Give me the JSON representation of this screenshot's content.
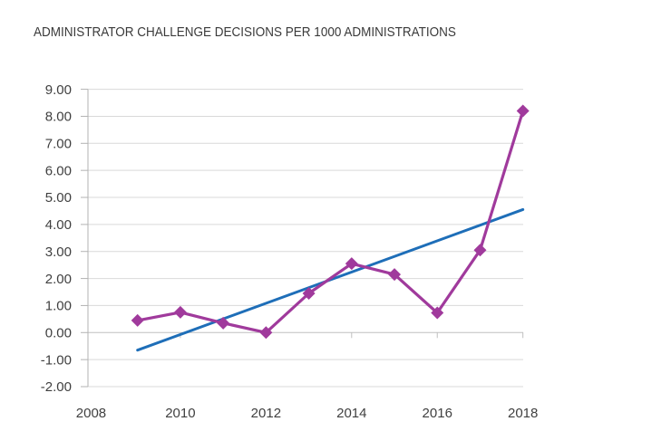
{
  "chart_data": {
    "type": "line",
    "title": "ADMINISTRATOR CHALLENGE DECISIONS PER 1000 ADMINISTRATIONS",
    "x": [
      2009,
      2010,
      2011,
      2012,
      2013,
      2014,
      2015,
      2016,
      2017,
      2018
    ],
    "series": [
      {
        "marker": "diamond",
        "color": "#a03a9c",
        "values": [
          0.45,
          0.75,
          0.35,
          0.0,
          1.45,
          2.55,
          2.15,
          0.73,
          3.05,
          8.2
        ]
      }
    ],
    "trendline": {
      "color": "#1e6eb8",
      "x1": 2009,
      "y1": -0.65,
      "x2": 2018,
      "y2": 4.55
    },
    "ylim": [
      -2,
      9
    ],
    "xlim": [
      2008,
      2018
    ],
    "grid": true,
    "legend": false,
    "y_ticks": [
      {
        "value": 9,
        "label": "9.00"
      },
      {
        "value": 8,
        "label": "8.00"
      },
      {
        "value": 7,
        "label": "7.00"
      },
      {
        "value": 6,
        "label": "6.00"
      },
      {
        "value": 5,
        "label": "5.00"
      },
      {
        "value": 4,
        "label": "4.00"
      },
      {
        "value": 3,
        "label": "3.00"
      },
      {
        "value": 2,
        "label": "2.00"
      },
      {
        "value": 1,
        "label": "1.00"
      },
      {
        "value": 0,
        "label": "0.00"
      },
      {
        "value": -1,
        "label": "-1.00"
      },
      {
        "value": -2,
        "label": "-2.00"
      }
    ],
    "x_ticks": [
      {
        "value": 2008,
        "label": "2008"
      },
      {
        "value": 2010,
        "label": "2010"
      },
      {
        "value": 2012,
        "label": "2012"
      },
      {
        "value": 2014,
        "label": "2014"
      },
      {
        "value": 2016,
        "label": "2016"
      },
      {
        "value": 2018,
        "label": "2018"
      }
    ],
    "colors": {
      "grid": "#d9d9d9",
      "axis": "#b3b3b3",
      "zero_axis": "#bfbfbf",
      "tick_label": "#404040",
      "title": "#3a3a3a",
      "series": "#a03a9c",
      "trend": "#1e6eb8"
    }
  }
}
